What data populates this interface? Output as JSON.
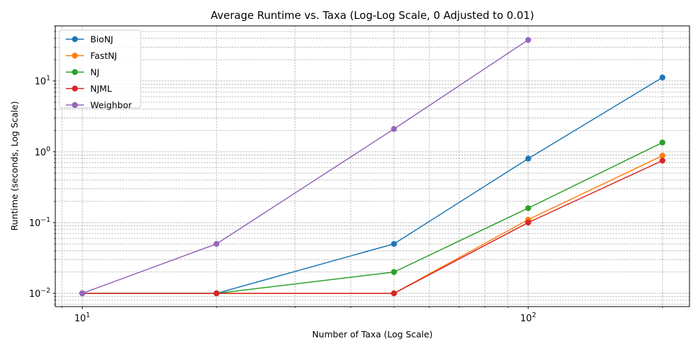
{
  "chart_data": {
    "type": "line",
    "title": "Average Runtime vs. Taxa (Log-Log Scale, 0 Adjusted to 0.01)",
    "xlabel": "Number of Taxa (Log Scale)",
    "ylabel": "Runtime (seconds, Log Scale)",
    "x_scale": "log",
    "y_scale": "log",
    "xlim": [
      8.7,
      230
    ],
    "ylim": [
      0.0065,
      60
    ],
    "x_ticks": [
      {
        "value": 10,
        "base": "10",
        "exp": "1"
      },
      {
        "value": 100,
        "base": "10",
        "exp": "2"
      }
    ],
    "y_ticks": [
      {
        "value": 0.01,
        "base": "10",
        "exp": "−2"
      },
      {
        "value": 0.1,
        "base": "10",
        "exp": "−1"
      },
      {
        "value": 1,
        "base": "10",
        "exp": "0"
      },
      {
        "value": 10,
        "base": "10",
        "exp": "1"
      }
    ],
    "grid": "both-major-minor",
    "legend_position": "top-left",
    "x": [
      10,
      20,
      50,
      100,
      200
    ],
    "series": [
      {
        "name": "BioNJ",
        "color": "#1f77b4",
        "points": [
          [
            10,
            0.01
          ],
          [
            20,
            0.01
          ],
          [
            50,
            0.05
          ],
          [
            100,
            0.8
          ],
          [
            200,
            11.2
          ]
        ]
      },
      {
        "name": "FastNJ",
        "color": "#ff7f0e",
        "points": [
          [
            10,
            0.01
          ],
          [
            20,
            0.01
          ],
          [
            50,
            0.01
          ],
          [
            100,
            0.11
          ],
          [
            200,
            0.88
          ]
        ]
      },
      {
        "name": "NJ",
        "color": "#2ca02c",
        "points": [
          [
            10,
            0.01
          ],
          [
            20,
            0.01
          ],
          [
            50,
            0.02
          ],
          [
            100,
            0.16
          ],
          [
            200,
            1.35
          ]
        ]
      },
      {
        "name": "NJML",
        "color": "#d62728",
        "points": [
          [
            10,
            0.01
          ],
          [
            20,
            0.01
          ],
          [
            50,
            0.01
          ],
          [
            100,
            0.1
          ],
          [
            200,
            0.75
          ]
        ]
      },
      {
        "name": "Weighbor",
        "color": "#9467bd",
        "points": [
          [
            10,
            0.01
          ],
          [
            20,
            0.05
          ],
          [
            50,
            2.1
          ],
          [
            100,
            38
          ]
        ]
      }
    ]
  }
}
